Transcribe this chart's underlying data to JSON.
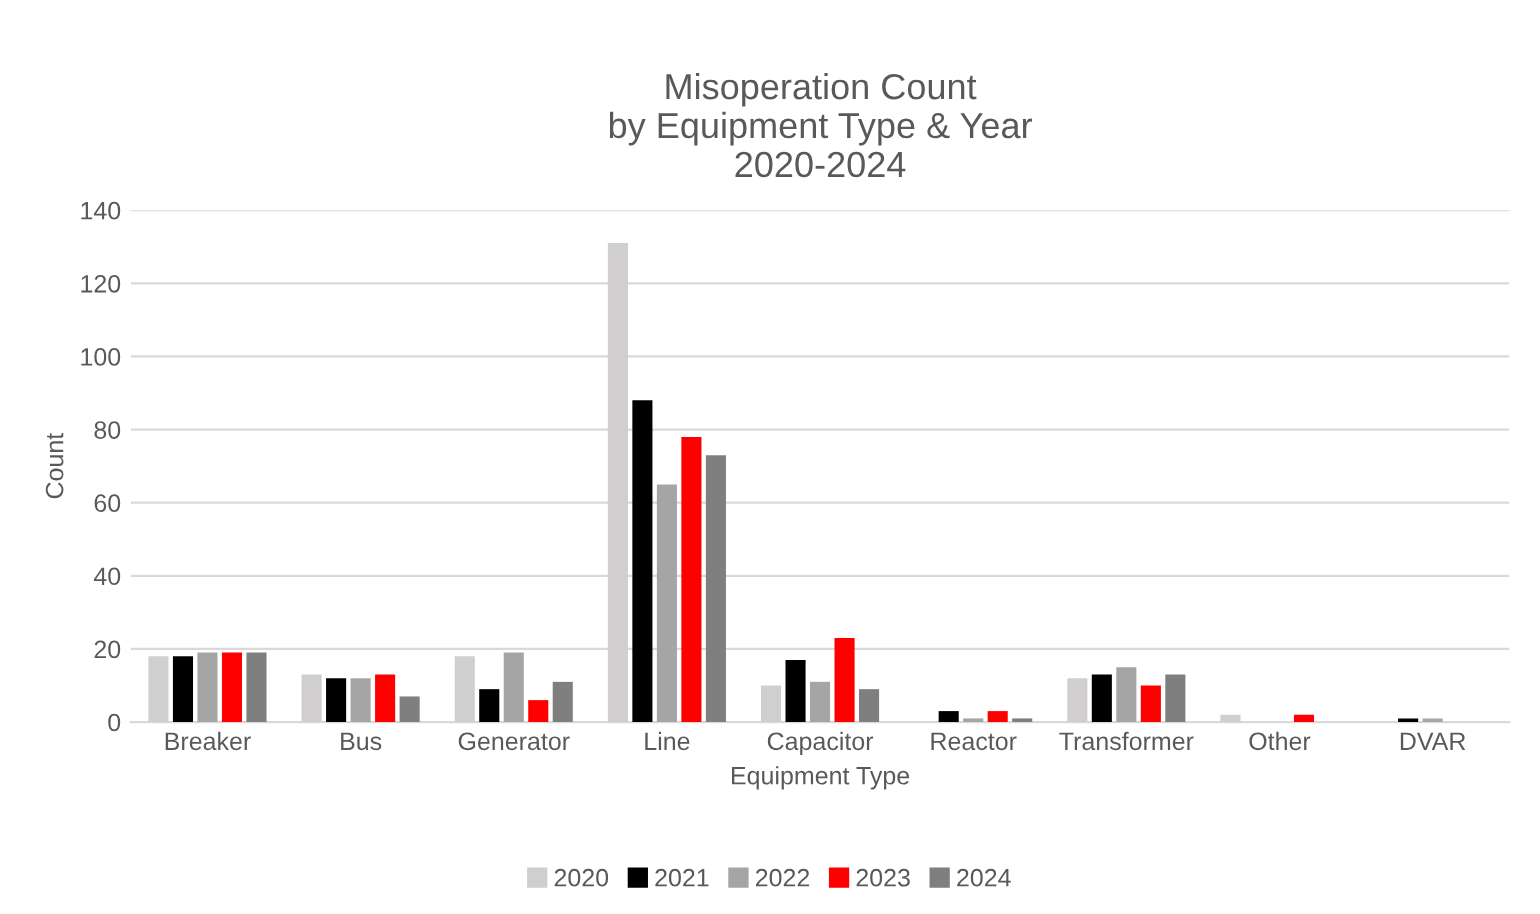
{
  "chart_data": {
    "type": "bar",
    "title": "Misoperation Count\nby Equipment Type & Year\n2020-2024",
    "xlabel": "Equipment Type",
    "ylabel": "Count",
    "categories": [
      "Breaker",
      "Bus",
      "Generator",
      "Line",
      "Capacitor",
      "Reactor",
      "Transformer",
      "Other",
      "DVAR"
    ],
    "series": [
      {
        "name": "2020",
        "color": "#d0cece",
        "values": [
          18,
          13,
          18,
          131,
          10,
          0,
          12,
          2,
          0
        ]
      },
      {
        "name": "2021",
        "color": "#000000",
        "values": [
          18,
          12,
          9,
          88,
          17,
          3,
          13,
          0,
          1
        ]
      },
      {
        "name": "2022",
        "color": "#a5a5a5",
        "values": [
          19,
          12,
          19,
          65,
          11,
          1,
          15,
          0,
          1
        ]
      },
      {
        "name": "2023",
        "color": "#ff0000",
        "values": [
          19,
          13,
          6,
          78,
          23,
          3,
          10,
          2,
          0
        ]
      },
      {
        "name": "2024",
        "color": "#7f7f7f",
        "values": [
          19,
          7,
          11,
          73,
          9,
          1,
          13,
          0,
          0
        ]
      }
    ],
    "ylim": [
      0,
      140
    ],
    "yticks": [
      0,
      20,
      40,
      60,
      80,
      100,
      120,
      140
    ],
    "grid": "y",
    "legend": "bottom"
  }
}
